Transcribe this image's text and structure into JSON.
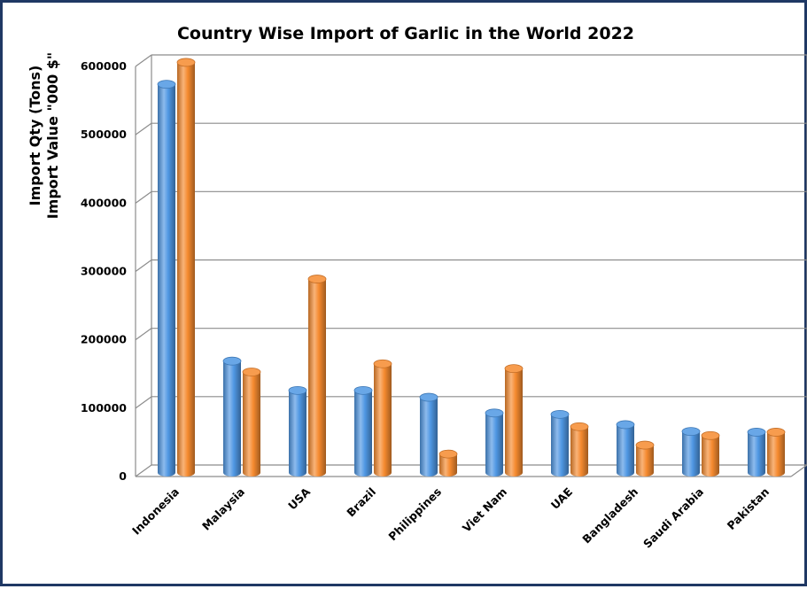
{
  "chart_data": {
    "type": "bar",
    "title": "Country Wise Import of Garlic  in the World 2022",
    "ylabel_lines": [
      "Import Qty (Tons)",
      "Import Value \"000 $\""
    ],
    "xlabel": "",
    "categories": [
      "Indonesia",
      "Malaysia",
      "USA",
      "Brazil",
      "Philippines",
      "Viet Nam",
      "UAE",
      "Bangladesh",
      "Saudi Arabia",
      "Pakistan"
    ],
    "series": [
      {
        "color": "#4f97e3",
        "values": [
          568000,
          163000,
          120000,
          120000,
          110000,
          87000,
          85000,
          70000,
          60000,
          59000
        ]
      },
      {
        "color": "#f58a2f",
        "values": [
          600000,
          147000,
          283000,
          159000,
          27000,
          152000,
          67000,
          40000,
          54000,
          59000
        ]
      }
    ],
    "ylim": [
      0,
      600000
    ],
    "yticks": [
      0,
      100000,
      200000,
      300000,
      400000,
      500000,
      600000
    ],
    "grid": true,
    "style": "3d-cylinder"
  }
}
